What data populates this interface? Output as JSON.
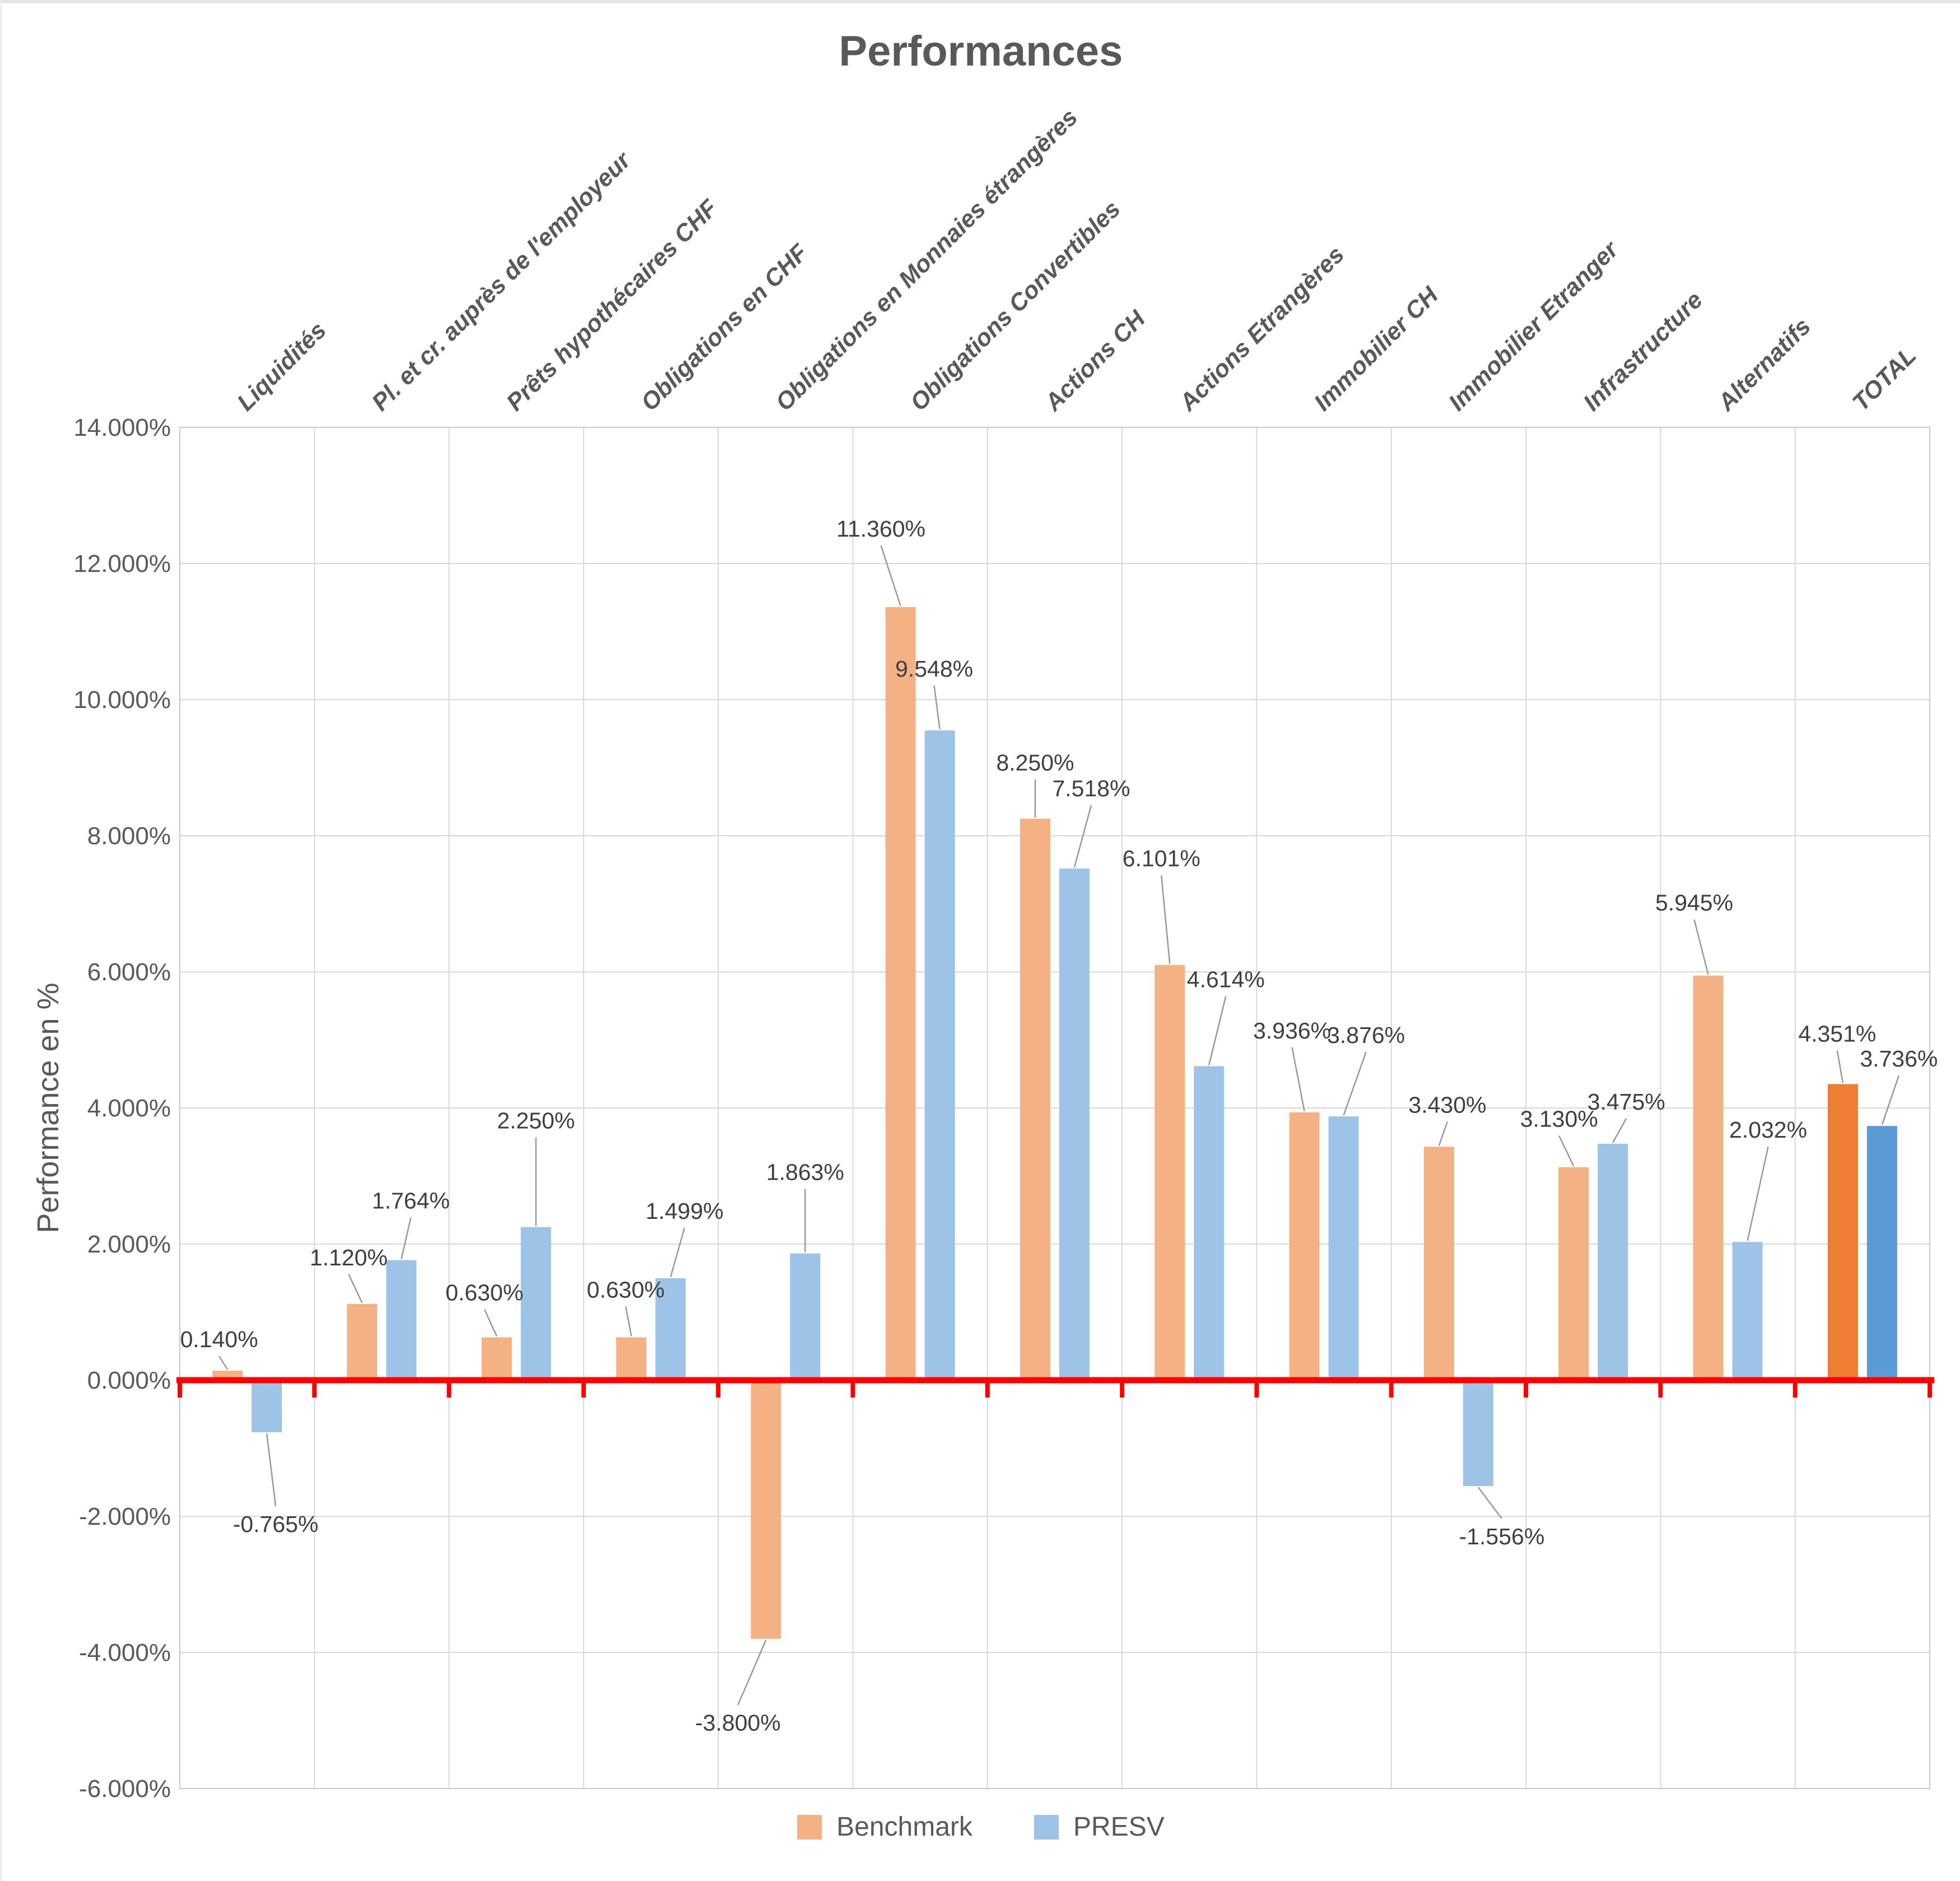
{
  "chart": {
    "title": "Performances",
    "y_axis_title": "Performance en %",
    "colors": {
      "benchmark": "#F4B183",
      "presv": "#9DC3E6",
      "benchmark_total": "#ED7D31",
      "presv_total": "#5B9BD5",
      "zero_line": "#FF0000",
      "gridline": "#D9D9D9",
      "plot_border": "#C9C9C9",
      "axis_text": "#595959",
      "data_label_text": "#3F3F3F",
      "leader_line": "#999999"
    }
  },
  "chart_data": {
    "type": "bar",
    "title": "Performances",
    "xlabel": "",
    "ylabel": "Performance en %",
    "ylim": [
      -6,
      14
    ],
    "y_tick_step": 2,
    "y_ticks": [
      "14.000%",
      "12.000%",
      "10.000%",
      "8.000%",
      "6.000%",
      "4.000%",
      "2.000%",
      "0.000%",
      "-2.000%",
      "-4.000%",
      "-6.000%"
    ],
    "grid": true,
    "legend_position": "bottom",
    "value_format": "0.000%",
    "categories": [
      "Liquidités",
      "Pl. et cr. auprès de l'employeur",
      "Prêts hypothécaires CHF",
      "Obligations en CHF",
      "Obligations en Monnaies étrangères",
      "Obligations Convertibles",
      "Actions CH",
      "Actions Etrangères",
      "Immobilier CH",
      "Immobilier Etranger",
      "Infrastructure",
      "Alternatifs",
      "TOTAL"
    ],
    "series": [
      {
        "name": "Benchmark",
        "color": "#F4B183",
        "total_color": "#ED7D31",
        "values": [
          0.14,
          1.12,
          0.63,
          0.63,
          -3.8,
          11.36,
          8.25,
          6.101,
          3.936,
          3.43,
          3.13,
          5.945,
          4.351
        ],
        "labels": [
          "0.140%",
          "1.120%",
          "0.630%",
          "0.630%",
          "-3.800%",
          "11.360%",
          "8.250%",
          "6.101%",
          "3.936%",
          "3.430%",
          "3.130%",
          "5.945%",
          "4.351%"
        ]
      },
      {
        "name": "PRESV",
        "color": "#9DC3E6",
        "total_color": "#5B9BD5",
        "values": [
          -0.765,
          1.764,
          2.25,
          1.499,
          1.863,
          9.548,
          7.518,
          4.614,
          3.876,
          -1.556,
          3.475,
          2.032,
          3.736
        ],
        "labels": [
          "-0.765%",
          "1.764%",
          "2.250%",
          "1.499%",
          "1.863%",
          "9.548%",
          "7.518%",
          "4.614%",
          "3.876%",
          "-1.556%",
          "3.475%",
          "2.032%",
          "3.736%"
        ]
      }
    ]
  }
}
